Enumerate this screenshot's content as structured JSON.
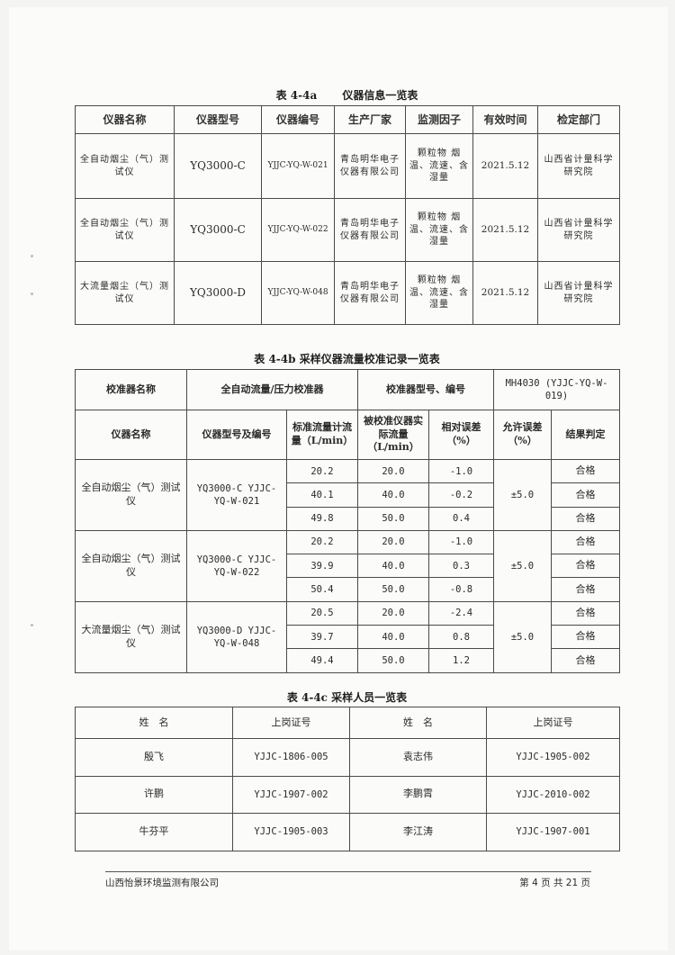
{
  "table_a": {
    "caption": "表 4-4a　　 仪器信息一览表",
    "headers": [
      "仪器名称",
      "仪器型号",
      "仪器编号",
      "生产厂家",
      "监测因子",
      "有效时间",
      "检定部门"
    ],
    "rows": [
      {
        "name": "全自动烟尘（气）测试仪",
        "model": "YQ3000-C",
        "id": "YJJC-YQ-W-021",
        "maker": "青岛明华电子仪器有限公司",
        "factors": "颗粒物 烟温、流速、含湿量",
        "valid": "2021.5.12",
        "dept": "山西省计量科学研究院"
      },
      {
        "name": "全自动烟尘（气）测试仪",
        "model": "YQ3000-C",
        "id": "YJJC-YQ-W-022",
        "maker": "青岛明华电子仪器有限公司",
        "factors": "颗粒物 烟温、流速、含湿量",
        "valid": "2021.5.12",
        "dept": "山西省计量科学研究院"
      },
      {
        "name": "大流量烟尘（气）测试仪",
        "model": "YQ3000-D",
        "id": "YJJC-YQ-W-048",
        "maker": "青岛明华电子仪器有限公司",
        "factors": "颗粒物 烟温、流速、含湿量",
        "valid": "2021.5.12",
        "dept": "山西省计量科学研究院"
      }
    ]
  },
  "table_b": {
    "caption": "表 4-4b 采样仪器流量校准记录一览表",
    "calibrator_label": "校准器名称",
    "calibrator_name": "全自动流量/压力校准器",
    "calibrator_model_label": "校准器型号、编号",
    "calibrator_model": "MH4030 (YJJC-YQ-W-019)",
    "headers": [
      "仪器名称",
      "仪器型号及编号",
      "标准流量计流量（L/min）",
      "被校准仪器实际流量（L/min）",
      "相对误差（%）",
      "允许误差（%）",
      "结果判定"
    ],
    "groups": [
      {
        "name": "全自动烟尘（气）测试仪",
        "model": "YQ3000-C YJJC-YQ-W-021",
        "allowed": "±5.0",
        "rows": [
          {
            "std": "20.2",
            "actual": "20.0",
            "err": "-1.0",
            "result": "合格"
          },
          {
            "std": "40.1",
            "actual": "40.0",
            "err": "-0.2",
            "result": "合格"
          },
          {
            "std": "49.8",
            "actual": "50.0",
            "err": "0.4",
            "result": "合格"
          }
        ]
      },
      {
        "name": "全自动烟尘（气）测试仪",
        "model": "YQ3000-C YJJC-YQ-W-022",
        "allowed": "±5.0",
        "rows": [
          {
            "std": "20.2",
            "actual": "20.0",
            "err": "-1.0",
            "result": "合格"
          },
          {
            "std": "39.9",
            "actual": "40.0",
            "err": "0.3",
            "result": "合格"
          },
          {
            "std": "50.4",
            "actual": "50.0",
            "err": "-0.8",
            "result": "合格"
          }
        ]
      },
      {
        "name": "大流量烟尘（气）测试仪",
        "model": "YQ3000-D YJJC-YQ-W-048",
        "allowed": "±5.0",
        "rows": [
          {
            "std": "20.5",
            "actual": "20.0",
            "err": "-2.4",
            "result": "合格"
          },
          {
            "std": "39.7",
            "actual": "40.0",
            "err": "0.8",
            "result": "合格"
          },
          {
            "std": "49.4",
            "actual": "50.0",
            "err": "1.2",
            "result": "合格"
          }
        ]
      }
    ]
  },
  "table_c": {
    "caption": "表 4-4c 采样人员一览表",
    "headers": [
      "姓　名",
      "上岗证号",
      "姓　名",
      "上岗证号"
    ],
    "rows": [
      [
        "殷飞",
        "YJJC-1806-005",
        "袁志伟",
        "YJJC-1905-002"
      ],
      [
        "许鹏",
        "YJJC-1907-002",
        "李鹏霄",
        "YJJC-2010-002"
      ],
      [
        "牛芬平",
        "YJJC-1905-003",
        "李江涛",
        "YJJC-1907-001"
      ]
    ]
  },
  "footer": {
    "company": "山西怡景环境监测有限公司",
    "page": "第 4 页 共 21 页"
  }
}
